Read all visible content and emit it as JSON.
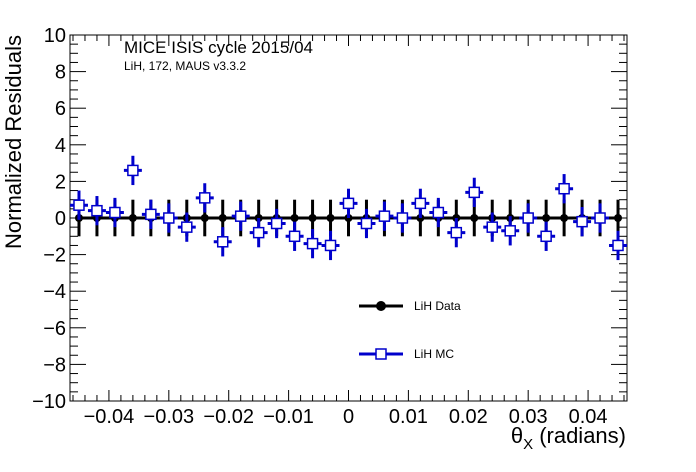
{
  "chart_data": {
    "type": "scatter",
    "title": "MICE ISIS cycle 2015/04",
    "subtitle": "LiH, 172, MAUS v3.3.2",
    "xlabel": "θ",
    "xlabel_sub": "X",
    "xlabel_unit": "(radians)",
    "ylabel": "Normalized Residuals",
    "xlim": [
      -0.0465,
      0.0465
    ],
    "ylim": [
      -10,
      10
    ],
    "x_ticks": [
      -0.04,
      -0.03,
      -0.02,
      -0.01,
      0,
      0.01,
      0.02,
      0.03,
      0.04
    ],
    "x_tick_labels": [
      "−0.04",
      "−0.03",
      "−0.02",
      "−0.01",
      "0",
      "0.01",
      "0.02",
      "0.03",
      "0.04"
    ],
    "y_ticks": [
      -10,
      -8,
      -6,
      -4,
      -2,
      0,
      2,
      4,
      6,
      8,
      10
    ],
    "y_tick_labels": [
      "−10",
      "−8",
      "−6",
      "−4",
      "−2",
      "0",
      "2",
      "4",
      "6",
      "8",
      "10"
    ],
    "x": [
      -0.045,
      -0.042,
      -0.039,
      -0.036,
      -0.033,
      -0.03,
      -0.027,
      -0.024,
      -0.021,
      -0.018,
      -0.015,
      -0.012,
      -0.009,
      -0.006,
      -0.003,
      0.0,
      0.003,
      0.006,
      0.009,
      0.012,
      0.015,
      0.018,
      0.021,
      0.024,
      0.027,
      0.03,
      0.033,
      0.036,
      0.039,
      0.042,
      0.045
    ],
    "x_err": 0.0015,
    "series": [
      {
        "name": "LiH Data",
        "marker": "filled-circle",
        "color": "#000000",
        "values": [
          0,
          0,
          0,
          0,
          0,
          0,
          0,
          0,
          0,
          0,
          0,
          0,
          0,
          0,
          0,
          0,
          0,
          0,
          0,
          0,
          0,
          0,
          0,
          0,
          0,
          0,
          0,
          0,
          0,
          0,
          0
        ],
        "y_err": [
          1,
          1,
          1,
          1,
          1,
          1,
          1,
          1,
          1,
          1,
          1,
          1,
          1,
          1,
          1,
          1,
          1,
          1,
          1,
          1,
          1,
          1,
          1,
          1,
          1,
          1,
          1,
          1,
          1,
          1,
          1
        ]
      },
      {
        "name": "LiH MC",
        "marker": "open-square",
        "color": "#0000cc",
        "values": [
          0.7,
          0.4,
          0.3,
          2.6,
          0.2,
          0.0,
          -0.5,
          1.1,
          -1.3,
          0.1,
          -0.8,
          -0.3,
          -1.0,
          -1.4,
          -1.5,
          0.8,
          -0.3,
          0.1,
          0.0,
          0.8,
          0.3,
          -0.8,
          1.4,
          -0.5,
          -0.7,
          0.0,
          -1.0,
          1.6,
          -0.2,
          0.0,
          -1.5
        ],
        "y_err": [
          0.8,
          0.8,
          0.8,
          0.8,
          0.8,
          0.8,
          0.8,
          0.8,
          0.8,
          0.8,
          0.8,
          0.8,
          0.8,
          0.8,
          0.8,
          0.8,
          0.8,
          0.8,
          0.8,
          0.8,
          0.8,
          0.8,
          0.8,
          0.8,
          0.8,
          0.8,
          0.8,
          0.8,
          0.8,
          0.8,
          0.8
        ]
      }
    ],
    "legend_placement": "lower-right"
  }
}
